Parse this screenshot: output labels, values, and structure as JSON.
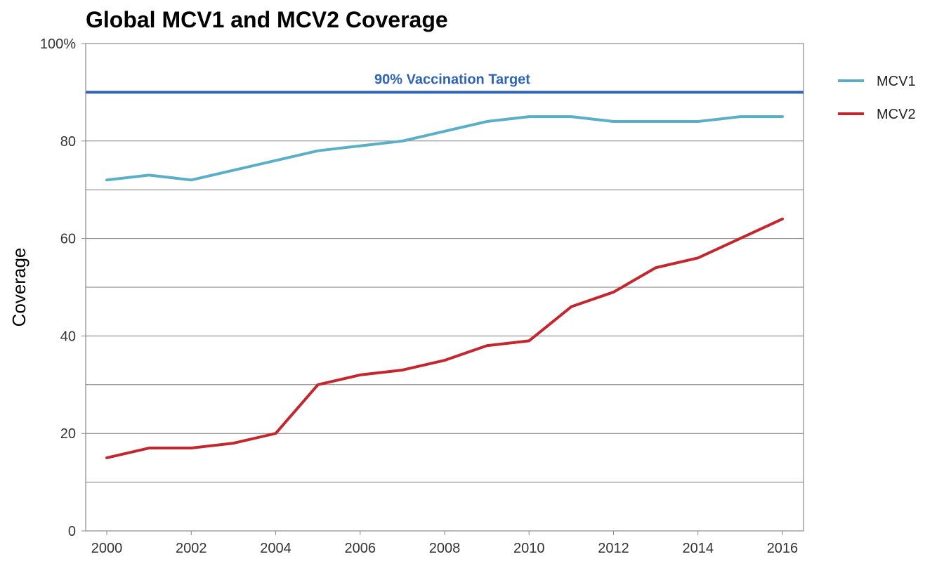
{
  "chart_data": {
    "type": "line",
    "title": "Global MCV1 and MCV2 Coverage",
    "xlabel": "",
    "ylabel": "Coverage",
    "x": [
      2000,
      2001,
      2002,
      2003,
      2004,
      2005,
      2006,
      2007,
      2008,
      2009,
      2010,
      2011,
      2012,
      2013,
      2014,
      2015,
      2016
    ],
    "xlim": [
      1999.5,
      2016.5
    ],
    "ylim": [
      0,
      100
    ],
    "x_ticks": [
      2000,
      2002,
      2004,
      2006,
      2008,
      2010,
      2012,
      2014,
      2016
    ],
    "x_tick_labels": [
      "2000",
      "2002",
      "2004",
      "2006",
      "2008",
      "2010",
      "2012",
      "2014",
      "2016"
    ],
    "y_ticks": [
      0,
      20,
      40,
      60,
      80,
      100
    ],
    "y_tick_labels": [
      "0",
      "20",
      "40",
      "60",
      "80",
      "100%"
    ],
    "grid_y": [
      10,
      20,
      30,
      40,
      50,
      60,
      70,
      80,
      90
    ],
    "grid": true,
    "legend_position": "right",
    "series": [
      {
        "name": "MCV1",
        "color": "#5aafc7",
        "values": [
          72,
          73,
          72,
          74,
          76,
          78,
          79,
          80,
          82,
          84,
          85,
          85,
          84,
          84,
          84,
          85,
          85
        ]
      },
      {
        "name": "MCV2",
        "color": "#c4262e",
        "values": [
          15,
          17,
          17,
          18,
          20,
          30,
          32,
          33,
          35,
          38,
          39,
          46,
          49,
          54,
          56,
          60,
          64
        ]
      }
    ],
    "annotations": [
      {
        "type": "hline",
        "y": 90,
        "label": "90% Vaccination Target",
        "color": "#2f64b4"
      }
    ]
  }
}
